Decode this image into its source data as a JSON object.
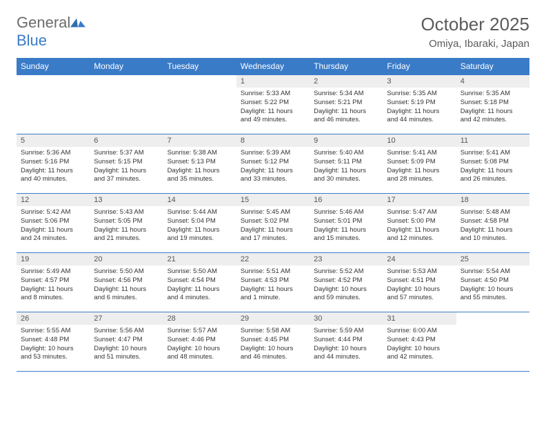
{
  "logo": {
    "text_general": "General",
    "text_blue": "Blue"
  },
  "title": "October 2025",
  "location": "Omiya, Ibaraki, Japan",
  "colors": {
    "header_bg": "#3a7bc8",
    "header_fg": "#ffffff",
    "daynum_bg": "#eeeeee",
    "border": "#3a7bc8",
    "text": "#333333",
    "title_color": "#5a5a5a"
  },
  "daynames": [
    "Sunday",
    "Monday",
    "Tuesday",
    "Wednesday",
    "Thursday",
    "Friday",
    "Saturday"
  ],
  "weeks": [
    [
      null,
      null,
      null,
      {
        "n": "1",
        "sr": "5:33 AM",
        "ss": "5:22 PM",
        "dl": "11 hours and 49 minutes."
      },
      {
        "n": "2",
        "sr": "5:34 AM",
        "ss": "5:21 PM",
        "dl": "11 hours and 46 minutes."
      },
      {
        "n": "3",
        "sr": "5:35 AM",
        "ss": "5:19 PM",
        "dl": "11 hours and 44 minutes."
      },
      {
        "n": "4",
        "sr": "5:35 AM",
        "ss": "5:18 PM",
        "dl": "11 hours and 42 minutes."
      }
    ],
    [
      {
        "n": "5",
        "sr": "5:36 AM",
        "ss": "5:16 PM",
        "dl": "11 hours and 40 minutes."
      },
      {
        "n": "6",
        "sr": "5:37 AM",
        "ss": "5:15 PM",
        "dl": "11 hours and 37 minutes."
      },
      {
        "n": "7",
        "sr": "5:38 AM",
        "ss": "5:13 PM",
        "dl": "11 hours and 35 minutes."
      },
      {
        "n": "8",
        "sr": "5:39 AM",
        "ss": "5:12 PM",
        "dl": "11 hours and 33 minutes."
      },
      {
        "n": "9",
        "sr": "5:40 AM",
        "ss": "5:11 PM",
        "dl": "11 hours and 30 minutes."
      },
      {
        "n": "10",
        "sr": "5:41 AM",
        "ss": "5:09 PM",
        "dl": "11 hours and 28 minutes."
      },
      {
        "n": "11",
        "sr": "5:41 AM",
        "ss": "5:08 PM",
        "dl": "11 hours and 26 minutes."
      }
    ],
    [
      {
        "n": "12",
        "sr": "5:42 AM",
        "ss": "5:06 PM",
        "dl": "11 hours and 24 minutes."
      },
      {
        "n": "13",
        "sr": "5:43 AM",
        "ss": "5:05 PM",
        "dl": "11 hours and 21 minutes."
      },
      {
        "n": "14",
        "sr": "5:44 AM",
        "ss": "5:04 PM",
        "dl": "11 hours and 19 minutes."
      },
      {
        "n": "15",
        "sr": "5:45 AM",
        "ss": "5:02 PM",
        "dl": "11 hours and 17 minutes."
      },
      {
        "n": "16",
        "sr": "5:46 AM",
        "ss": "5:01 PM",
        "dl": "11 hours and 15 minutes."
      },
      {
        "n": "17",
        "sr": "5:47 AM",
        "ss": "5:00 PM",
        "dl": "11 hours and 12 minutes."
      },
      {
        "n": "18",
        "sr": "5:48 AM",
        "ss": "4:58 PM",
        "dl": "11 hours and 10 minutes."
      }
    ],
    [
      {
        "n": "19",
        "sr": "5:49 AM",
        "ss": "4:57 PM",
        "dl": "11 hours and 8 minutes."
      },
      {
        "n": "20",
        "sr": "5:50 AM",
        "ss": "4:56 PM",
        "dl": "11 hours and 6 minutes."
      },
      {
        "n": "21",
        "sr": "5:50 AM",
        "ss": "4:54 PM",
        "dl": "11 hours and 4 minutes."
      },
      {
        "n": "22",
        "sr": "5:51 AM",
        "ss": "4:53 PM",
        "dl": "11 hours and 1 minute."
      },
      {
        "n": "23",
        "sr": "5:52 AM",
        "ss": "4:52 PM",
        "dl": "10 hours and 59 minutes."
      },
      {
        "n": "24",
        "sr": "5:53 AM",
        "ss": "4:51 PM",
        "dl": "10 hours and 57 minutes."
      },
      {
        "n": "25",
        "sr": "5:54 AM",
        "ss": "4:50 PM",
        "dl": "10 hours and 55 minutes."
      }
    ],
    [
      {
        "n": "26",
        "sr": "5:55 AM",
        "ss": "4:48 PM",
        "dl": "10 hours and 53 minutes."
      },
      {
        "n": "27",
        "sr": "5:56 AM",
        "ss": "4:47 PM",
        "dl": "10 hours and 51 minutes."
      },
      {
        "n": "28",
        "sr": "5:57 AM",
        "ss": "4:46 PM",
        "dl": "10 hours and 48 minutes."
      },
      {
        "n": "29",
        "sr": "5:58 AM",
        "ss": "4:45 PM",
        "dl": "10 hours and 46 minutes."
      },
      {
        "n": "30",
        "sr": "5:59 AM",
        "ss": "4:44 PM",
        "dl": "10 hours and 44 minutes."
      },
      {
        "n": "31",
        "sr": "6:00 AM",
        "ss": "4:43 PM",
        "dl": "10 hours and 42 minutes."
      },
      null
    ]
  ],
  "labels": {
    "sunrise": "Sunrise:",
    "sunset": "Sunset:",
    "daylight": "Daylight:"
  }
}
